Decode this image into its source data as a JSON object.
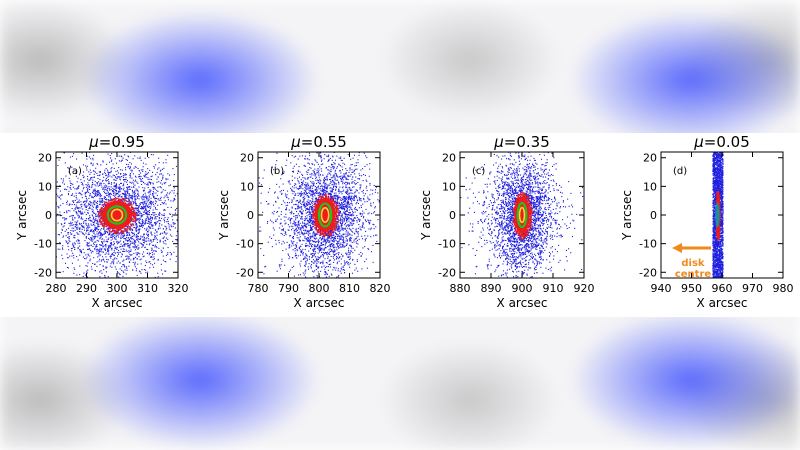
{
  "chart_data": [
    {
      "type": "scatter",
      "panel_label": "(a)",
      "title_mu": "μ",
      "title_value": "=0.95",
      "xlabel": "X arcsec",
      "ylabel": "Y arcsec",
      "xlim": [
        280,
        320
      ],
      "ylim": [
        -22,
        22
      ],
      "xticks": [
        280,
        290,
        300,
        310,
        320
      ],
      "yticks": [
        -20,
        -10,
        0,
        10,
        20
      ],
      "center": [
        300,
        0
      ],
      "spread": [
        9,
        9
      ],
      "core": [
        5,
        5
      ],
      "contours": [
        [
          3,
          3
        ],
        [
          1.8,
          2
        ]
      ],
      "points": 3200
    },
    {
      "type": "scatter",
      "panel_label": "(b)",
      "title_mu": "μ",
      "title_value": "=0.55",
      "xlabel": "X arcsec",
      "ylabel": "Y arcsec",
      "xlim": [
        780,
        820
      ],
      "ylim": [
        -22,
        22
      ],
      "xticks": [
        780,
        790,
        800,
        810,
        820
      ],
      "yticks": [
        -20,
        -10,
        0,
        10,
        20
      ],
      "center": [
        802,
        0
      ],
      "spread": [
        6,
        9
      ],
      "core": [
        3.5,
        6
      ],
      "contours": [
        [
          2,
          4
        ],
        [
          1.2,
          2.5
        ]
      ],
      "points": 3000
    },
    {
      "type": "scatter",
      "panel_label": "(c)",
      "title_mu": "μ",
      "title_value": "=0.35",
      "xlabel": "X arcsec",
      "ylabel": "Y arcsec",
      "xlim": [
        880,
        920
      ],
      "ylim": [
        -22,
        22
      ],
      "xticks": [
        880,
        890,
        900,
        910,
        920
      ],
      "yticks": [
        -20,
        -10,
        0,
        10,
        20
      ],
      "center": [
        900,
        0
      ],
      "spread": [
        4.5,
        9
      ],
      "core": [
        2.5,
        6.5
      ],
      "contours": [
        [
          1.4,
          4.2
        ],
        [
          0.8,
          2.6
        ]
      ],
      "points": 2800
    },
    {
      "type": "scatter",
      "panel_label": "(d)",
      "title_mu": "μ",
      "title_value": "=0.05",
      "xlabel": "X arcsec",
      "ylabel": "Y arcsec",
      "xlim": [
        940,
        980
      ],
      "ylim": [
        -22,
        22
      ],
      "xticks": [
        940,
        950,
        960,
        970,
        980
      ],
      "yticks": [
        -20,
        -10,
        0,
        10,
        20
      ],
      "center": [
        958.5,
        0
      ],
      "spread": [
        0.8,
        12
      ],
      "core": [
        0.5,
        7
      ],
      "contours": [
        [
          0.35,
          4
        ]
      ],
      "points": 2600,
      "annotation": {
        "line1": "disk",
        "line2": "centre",
        "color": "#f08a1c"
      }
    }
  ],
  "colors": {
    "scatter": "#1f1fe0",
    "core": "#ee1c1c",
    "contour_outer": "#22c022",
    "contour_inner": "#ffd23a",
    "contour_limb": "#1a8fa0"
  }
}
